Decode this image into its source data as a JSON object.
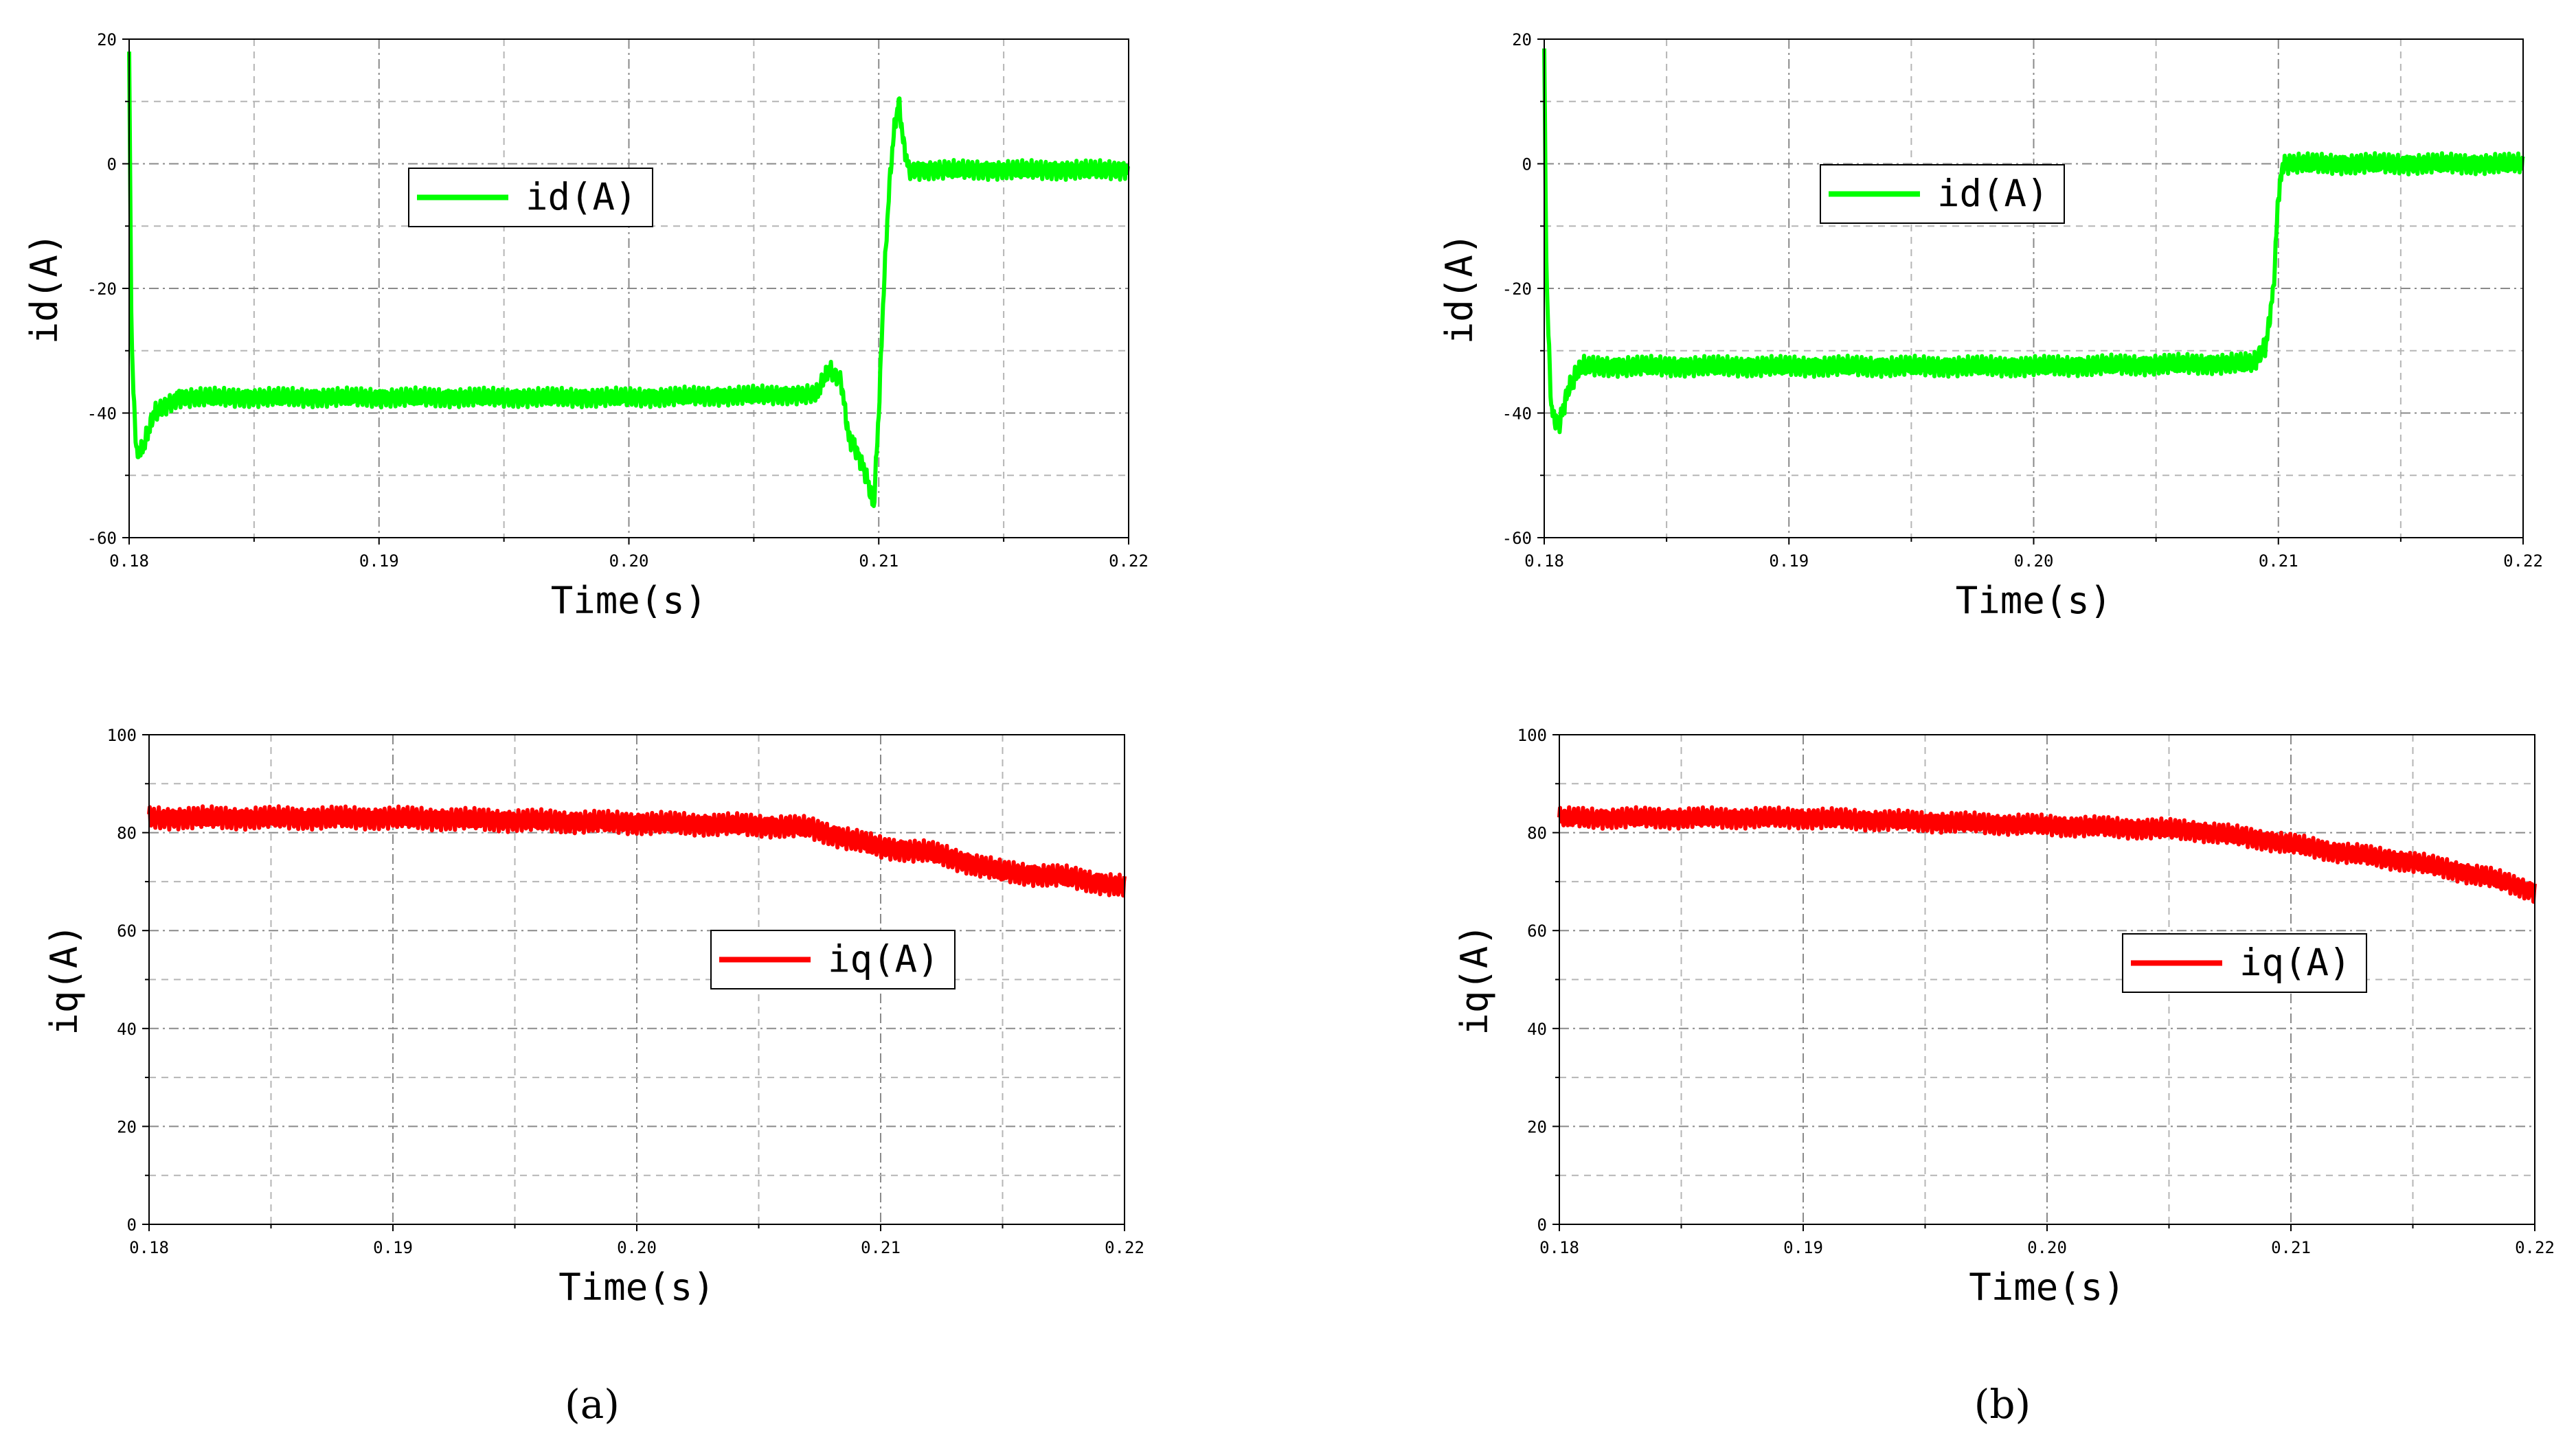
{
  "chart_data": [
    {
      "id": "a_id",
      "type": "line",
      "panel": "a",
      "title": "",
      "xlabel": "Time(s)",
      "ylabel": "id(A)",
      "xlim": [
        0.18,
        0.22
      ],
      "ylim": [
        -60,
        20
      ],
      "xticks": [
        0.18,
        0.19,
        0.2,
        0.21,
        0.22
      ],
      "xtick_labels": [
        "0.18",
        "0.19",
        "0.20",
        "0.21",
        "0.22"
      ],
      "yticks": [
        -60,
        -40,
        -20,
        0,
        20
      ],
      "ytick_labels": [
        "-60",
        "-40",
        "-20",
        "0",
        "20"
      ],
      "grid": true,
      "legend": "upper-left-center",
      "series": [
        {
          "name": "id(A)",
          "color": "#00ff00",
          "x": [
            0.18,
            0.1801,
            0.1803,
            0.1806,
            0.181,
            0.182,
            0.19,
            0.2,
            0.2075,
            0.208,
            0.2085,
            0.2088,
            0.209,
            0.2095,
            0.2098,
            0.21,
            0.2102,
            0.2104,
            0.2106,
            0.2108,
            0.211,
            0.2112,
            0.2115,
            0.212,
            0.215,
            0.22
          ],
          "y": [
            18,
            -30,
            -47,
            -45,
            -40,
            -37.5,
            -37.5,
            -37.5,
            -37,
            -33,
            -35,
            -44,
            -45,
            -50,
            -55,
            -40,
            -20,
            -5,
            5,
            10,
            3,
            -1,
            -1,
            -1,
            -1,
            -1
          ],
          "noise": 1.6
        }
      ]
    },
    {
      "id": "b_id",
      "type": "line",
      "panel": "b",
      "title": "",
      "xlabel": "Time(s)",
      "ylabel": "id(A)",
      "xlim": [
        0.18,
        0.22
      ],
      "ylim": [
        -60,
        20
      ],
      "xticks": [
        0.18,
        0.19,
        0.2,
        0.21,
        0.22
      ],
      "xtick_labels": [
        "0.18",
        "0.19",
        "0.20",
        "0.21",
        "0.22"
      ],
      "yticks": [
        -60,
        -40,
        -20,
        0,
        20
      ],
      "ytick_labels": [
        "-60",
        "-40",
        "-20",
        "0",
        "20"
      ],
      "grid": true,
      "legend": "upper-left-center",
      "series": [
        {
          "name": "id(A)",
          "color": "#00ff00",
          "x": [
            0.18,
            0.1801,
            0.1803,
            0.1806,
            0.181,
            0.1815,
            0.19,
            0.2,
            0.209,
            0.2095,
            0.2098,
            0.21,
            0.2102,
            0.2105,
            0.211,
            0.215,
            0.22
          ],
          "y": [
            18,
            -20,
            -40,
            -42,
            -36,
            -32.5,
            -32.5,
            -32.5,
            -32,
            -29,
            -20,
            -5,
            0,
            0,
            0,
            0,
            0
          ],
          "noise": 1.7
        }
      ]
    },
    {
      "id": "a_iq",
      "type": "line",
      "panel": "a",
      "title": "",
      "xlabel": "Time(s)",
      "ylabel": "iq(A)",
      "xlim": [
        0.18,
        0.22
      ],
      "ylim": [
        0,
        100
      ],
      "xticks": [
        0.18,
        0.19,
        0.2,
        0.21,
        0.22
      ],
      "xtick_labels": [
        "0.18",
        "0.19",
        "0.20",
        "0.21",
        "0.22"
      ],
      "yticks": [
        0,
        20,
        40,
        60,
        80,
        100
      ],
      "ytick_labels": [
        "0",
        "20",
        "40",
        "60",
        "80",
        "100"
      ],
      "grid": true,
      "legend": "center",
      "series": [
        {
          "name": "iq(A)",
          "color": "#ff0000",
          "x": [
            0.18,
            0.19,
            0.2,
            0.205,
            0.207,
            0.21,
            0.212,
            0.215,
            0.2175,
            0.22
          ],
          "y": [
            83,
            83,
            82,
            81.5,
            81,
            77,
            76,
            72,
            71,
            69
          ],
          "noise": 2.4
        }
      ]
    },
    {
      "id": "b_iq",
      "type": "line",
      "panel": "b",
      "title": "",
      "xlabel": "Time(s)",
      "ylabel": "iq(A)",
      "xlim": [
        0.18,
        0.22
      ],
      "ylim": [
        0,
        100
      ],
      "xticks": [
        0.18,
        0.19,
        0.2,
        0.21,
        0.22
      ],
      "xtick_labels": [
        "0.18",
        "0.19",
        "0.20",
        "0.21",
        "0.22"
      ],
      "yticks": [
        0,
        20,
        40,
        60,
        80,
        100
      ],
      "ytick_labels": [
        "0",
        "20",
        "40",
        "60",
        "80",
        "100"
      ],
      "grid": true,
      "legend": "center",
      "series": [
        {
          "name": "iq(A)",
          "color": "#ff0000",
          "x": [
            0.18,
            0.19,
            0.2,
            0.206,
            0.209,
            0.212,
            0.215,
            0.218,
            0.22
          ],
          "y": [
            83,
            83,
            81.5,
            80.5,
            78.5,
            76,
            74,
            71,
            68
          ],
          "noise": 2.2
        }
      ]
    }
  ],
  "captions": {
    "a": "(a)",
    "b": "(b)"
  }
}
